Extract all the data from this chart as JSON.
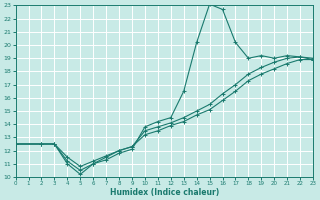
{
  "xlabel": "Humidex (Indice chaleur)",
  "bg_color": "#c8eae6",
  "grid_color": "#ffffff",
  "line_color": "#1a7a6e",
  "xlim": [
    0,
    23
  ],
  "ylim": [
    10,
    23
  ],
  "xticks": [
    0,
    1,
    2,
    3,
    4,
    5,
    6,
    7,
    8,
    9,
    10,
    11,
    12,
    13,
    14,
    15,
    16,
    17,
    18,
    19,
    20,
    21,
    22,
    23
  ],
  "yticks": [
    10,
    11,
    12,
    13,
    14,
    15,
    16,
    17,
    18,
    19,
    20,
    21,
    22,
    23
  ],
  "line1_x": [
    0,
    2,
    3,
    4,
    5,
    6,
    7,
    8,
    9,
    10,
    11,
    12,
    13,
    14,
    15,
    16,
    17,
    18,
    19,
    20,
    21,
    22,
    23
  ],
  "line1_y": [
    12.5,
    12.5,
    12.5,
    11.0,
    10.2,
    11.0,
    11.3,
    11.8,
    12.1,
    13.8,
    14.2,
    14.5,
    16.5,
    20.2,
    23.1,
    22.7,
    20.2,
    19.0,
    19.2,
    19.0,
    19.2,
    19.1,
    18.9
  ],
  "line2_x": [
    0,
    2,
    3,
    4,
    5,
    6,
    7,
    8,
    9,
    10,
    11,
    12,
    13,
    14,
    15,
    16,
    17,
    18,
    19,
    20,
    21,
    22,
    23
  ],
  "line2_y": [
    12.5,
    12.5,
    12.5,
    11.2,
    10.5,
    11.0,
    11.5,
    12.0,
    12.3,
    13.5,
    13.8,
    14.1,
    14.5,
    15.0,
    15.5,
    16.3,
    17.0,
    17.8,
    18.3,
    18.7,
    19.0,
    19.1,
    19.0
  ],
  "line3_x": [
    0,
    2,
    3,
    4,
    5,
    6,
    7,
    8,
    9,
    10,
    11,
    12,
    13,
    14,
    15,
    16,
    17,
    18,
    19,
    20,
    21,
    22,
    23
  ],
  "line3_y": [
    12.5,
    12.5,
    12.5,
    11.5,
    10.8,
    11.2,
    11.6,
    12.0,
    12.3,
    13.2,
    13.5,
    13.9,
    14.2,
    14.7,
    15.1,
    15.8,
    16.5,
    17.3,
    17.8,
    18.2,
    18.6,
    18.9,
    18.9
  ]
}
